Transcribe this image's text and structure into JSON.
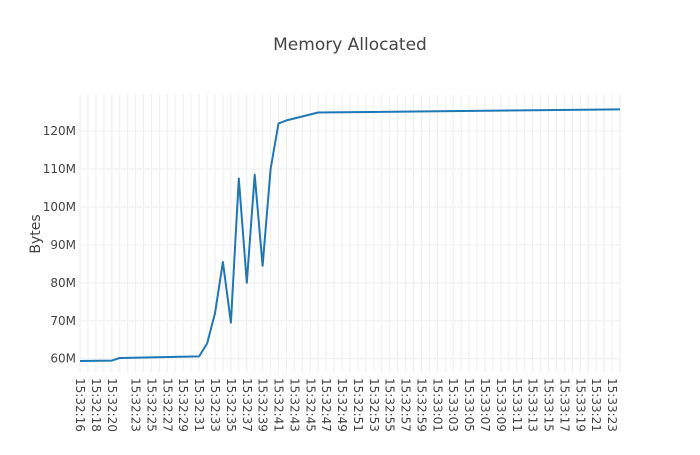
{
  "chart_data": {
    "type": "line",
    "title": "Memory Allocated",
    "xlabel": "",
    "ylabel": "Bytes",
    "x_tick_labels": [
      "15:32:16",
      "15:32:18",
      "15:32:20",
      "15:32:23",
      "15:32:25",
      "15:32:27",
      "15:32:29",
      "15:32:31",
      "15:32:33",
      "15:32:35",
      "15:32:37",
      "15:32:39",
      "15:32:41",
      "15:32:43",
      "15:32:45",
      "15:32:47",
      "15:32:49",
      "15:32:51",
      "15:32:53",
      "15:32:55",
      "15:32:57",
      "15:32:59",
      "15:33:01",
      "15:33:03",
      "15:33:05",
      "15:33:07",
      "15:33:09",
      "15:33:11",
      "15:33:13",
      "15:33:15",
      "15:33:17",
      "15:33:19",
      "15:33:21",
      "15:33:23"
    ],
    "y_ticks": [
      {
        "value": 60000000,
        "label": "60M"
      },
      {
        "value": 70000000,
        "label": "70M"
      },
      {
        "value": 80000000,
        "label": "80M"
      },
      {
        "value": 90000000,
        "label": "90M"
      },
      {
        "value": 100000000,
        "label": "100M"
      },
      {
        "value": 110000000,
        "label": "110M"
      },
      {
        "value": 120000000,
        "label": "120M"
      }
    ],
    "xlim": [
      "15:32:16",
      "15:33:24"
    ],
    "ylim": [
      56500000,
      129500000
    ],
    "grid": true,
    "series": [
      {
        "color": "#1f77b4",
        "points": [
          {
            "x": "15:32:16",
            "y": 59400000
          },
          {
            "x": "15:32:20",
            "y": 59500000
          },
          {
            "x": "15:32:21",
            "y": 60200000
          },
          {
            "x": "15:32:31",
            "y": 60600000
          },
          {
            "x": "15:32:32",
            "y": 64000000
          },
          {
            "x": "15:32:33",
            "y": 72000000
          },
          {
            "x": "15:32:34",
            "y": 85500000
          },
          {
            "x": "15:32:35",
            "y": 69500000
          },
          {
            "x": "15:32:36",
            "y": 107500000
          },
          {
            "x": "15:32:37",
            "y": 80000000
          },
          {
            "x": "15:32:38",
            "y": 108500000
          },
          {
            "x": "15:32:39",
            "y": 84500000
          },
          {
            "x": "15:32:40",
            "y": 110000000
          },
          {
            "x": "15:32:41",
            "y": 122000000
          },
          {
            "x": "15:32:42",
            "y": 122800000
          },
          {
            "x": "15:32:46",
            "y": 124900000
          },
          {
            "x": "15:33:24",
            "y": 125700000
          }
        ]
      }
    ]
  }
}
